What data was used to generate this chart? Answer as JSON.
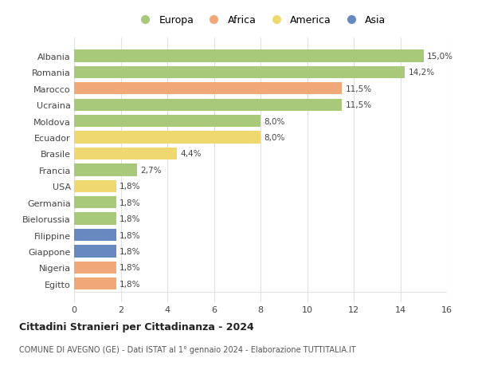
{
  "countries": [
    "Albania",
    "Romania",
    "Marocco",
    "Ucraina",
    "Moldova",
    "Ecuador",
    "Brasile",
    "Francia",
    "USA",
    "Germania",
    "Bielorussia",
    "Filippine",
    "Giappone",
    "Nigeria",
    "Egitto"
  ],
  "values": [
    15.0,
    14.2,
    11.5,
    11.5,
    8.0,
    8.0,
    4.4,
    2.7,
    1.8,
    1.8,
    1.8,
    1.8,
    1.8,
    1.8,
    1.8
  ],
  "labels": [
    "15,0%",
    "14,2%",
    "11,5%",
    "11,5%",
    "8,0%",
    "8,0%",
    "4,4%",
    "2,7%",
    "1,8%",
    "1,8%",
    "1,8%",
    "1,8%",
    "1,8%",
    "1,8%",
    "1,8%"
  ],
  "continents": [
    "Europa",
    "Europa",
    "Africa",
    "Europa",
    "Europa",
    "America",
    "America",
    "Europa",
    "America",
    "Europa",
    "Europa",
    "Asia",
    "Asia",
    "Africa",
    "Africa"
  ],
  "continent_colors": {
    "Europa": "#a8c87a",
    "Africa": "#f0a878",
    "America": "#f0d870",
    "Asia": "#6888c0"
  },
  "legend_order": [
    "Europa",
    "Africa",
    "America",
    "Asia"
  ],
  "title": "Cittadini Stranieri per Cittadinanza - 2024",
  "subtitle": "COMUNE DI AVEGNO (GE) - Dati ISTAT al 1° gennaio 2024 - Elaborazione TUTTITALIA.IT",
  "xlim": [
    0,
    16
  ],
  "xticks": [
    0,
    2,
    4,
    6,
    8,
    10,
    12,
    14,
    16
  ],
  "bg_color": "#ffffff",
  "grid_color": "#e0e0e0",
  "bar_height": 0.75,
  "label_fontsize": 7.5,
  "ytick_fontsize": 8,
  "xtick_fontsize": 8,
  "title_fontsize": 9,
  "subtitle_fontsize": 7
}
